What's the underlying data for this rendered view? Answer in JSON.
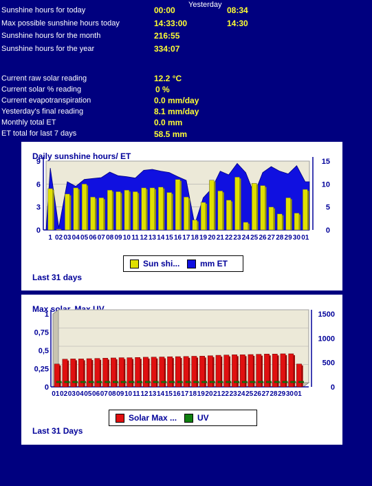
{
  "header": {
    "yesterday_label": "Yesterday"
  },
  "sunshine": {
    "today_label": "Sunshine hours for today",
    "today_value": "00:00",
    "today_yesterday": "08:34",
    "max_label": "Max possible sunshine hours today",
    "max_value": "14:33:00",
    "max_yesterday": "14:30",
    "month_label": "Sunshine hours for the month",
    "month_value": "216:55",
    "year_label": "Sunshine hours for the year",
    "year_value": "334:07"
  },
  "solar": {
    "raw_label": "Current raw solar reading",
    "raw_value": "12.2 °C",
    "pct_label": "Current solar % reading",
    "pct_value": "0 %",
    "evap_label": "Current evapotranspiration",
    "evap_value": "0.0 mm/day",
    "yest_label": "Yesterday's final reading",
    "yest_value": "8.1 mm/day",
    "monthly_label": "Monthly total ET",
    "monthly_value": "0.0 mm",
    "week_label": "ET total for last 7 days",
    "week_value": "58.5 mm"
  },
  "chart1": {
    "title": "Daily sunshine hours/ ET",
    "legend": [
      "Sun shi...",
      "mm ET"
    ],
    "footer": "Last 31 days"
  },
  "chart2": {
    "title": "Max solar, Max UV",
    "legend": [
      "Solar Max ...",
      "UV"
    ],
    "footer": "Last 31 Days"
  },
  "colors": {
    "background": "#00007f",
    "label": "#ffffff",
    "value": "#ffff33",
    "sun_bar": "#e0e000",
    "et_area": "#1010e0",
    "solar_bar": "#e01010",
    "uv_bar": "#108010",
    "axis_text": "#000099"
  },
  "chart_data": [
    {
      "type": "bar",
      "title": "Daily sunshine hours/ ET",
      "categories": [
        "01",
        "02",
        "03",
        "04",
        "05",
        "06",
        "07",
        "08",
        "09",
        "10",
        "11",
        "12",
        "13",
        "14",
        "15",
        "16",
        "17",
        "18",
        "19",
        "20",
        "21",
        "22",
        "23",
        "24",
        "25",
        "26",
        "27",
        "28",
        "29",
        "30",
        "01"
      ],
      "first_tick_label": "1",
      "series": [
        {
          "name": "Sun shi...",
          "type": "bar",
          "axis": "left",
          "values": [
            5.4,
            0.1,
            4.7,
            5.5,
            6.0,
            4.3,
            4.2,
            5.2,
            5.0,
            5.2,
            5.0,
            5.5,
            5.5,
            5.6,
            4.9,
            6.6,
            4.3,
            1.3,
            3.6,
            6.5,
            5.1,
            3.9,
            6.9,
            1.0,
            6.1,
            5.8,
            3.0,
            2.1,
            4.2,
            2.2,
            5.3
          ]
        },
        {
          "name": "mm ET",
          "type": "area",
          "axis": "right",
          "values": [
            13.5,
            0.5,
            10.5,
            9.5,
            11.0,
            11.2,
            11.4,
            12.6,
            11.8,
            11.6,
            11.3,
            13.0,
            13.2,
            12.8,
            12.5,
            11.6,
            10.8,
            1.2,
            7.0,
            9.0,
            12.8,
            12.0,
            14.5,
            12.5,
            7.8,
            12.5,
            13.8,
            12.8,
            12.2,
            14.0,
            10.5
          ]
        }
      ],
      "xlabel": "",
      "ylabel": "",
      "ylim": [
        0,
        9
      ],
      "yticks": [
        0,
        3,
        6,
        9
      ],
      "y2lim": [
        0,
        15
      ],
      "y2ticks": [
        0,
        5,
        10,
        15
      ],
      "legend": "bottom"
    },
    {
      "type": "bar",
      "title": "Max solar, Max UV",
      "categories": [
        "01",
        "02",
        "03",
        "04",
        "05",
        "06",
        "07",
        "08",
        "09",
        "10",
        "11",
        "12",
        "13",
        "14",
        "15",
        "16",
        "17",
        "18",
        "19",
        "20",
        "21",
        "22",
        "23",
        "24",
        "25",
        "26",
        "27",
        "28",
        "29",
        "30",
        "01"
      ],
      "series": [
        {
          "name": "Solar Max ...",
          "axis": "right",
          "values": [
            470,
            570,
            575,
            575,
            580,
            585,
            590,
            595,
            600,
            600,
            605,
            610,
            612,
            615,
            620,
            622,
            625,
            630,
            632,
            640,
            650,
            655,
            660,
            660,
            665,
            670,
            675,
            675,
            680,
            680,
            470
          ]
        },
        {
          "name": "UV",
          "axis": "left",
          "values": [
            0.02,
            0.02,
            0.02,
            0.02,
            0.02,
            0.02,
            0.02,
            0.02,
            0.02,
            0.02,
            0.02,
            0.02,
            0.02,
            0.02,
            0.02,
            0.02,
            0.02,
            0.02,
            0.02,
            0.02,
            0.02,
            0.02,
            0.02,
            0.02,
            0.02,
            0.02,
            0.02,
            0.02,
            0.02,
            0.02,
            0.02
          ]
        }
      ],
      "xlabel": "",
      "ylabel": "",
      "ylim": [
        0,
        1
      ],
      "yticks": [
        "0",
        "0,25",
        "0,5",
        "0,75",
        "1"
      ],
      "y2lim": [
        0,
        1500
      ],
      "y2ticks": [
        0,
        500,
        1000,
        1500
      ],
      "legend": "bottom"
    }
  ]
}
